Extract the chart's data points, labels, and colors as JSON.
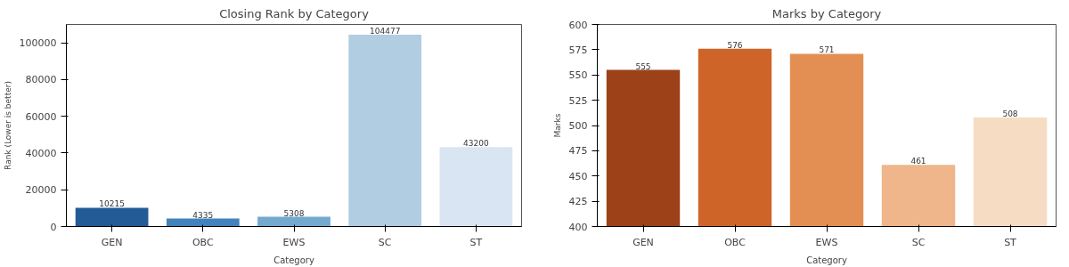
{
  "chart_data": [
    {
      "type": "bar",
      "title": "Closing Rank by Category",
      "xlabel": "Category",
      "ylabel": "Rank (Lower is better)",
      "categories": [
        "GEN",
        "OBC",
        "EWS",
        "SC",
        "ST"
      ],
      "values": [
        10215,
        4335,
        5308,
        104477,
        43200
      ],
      "colors": [
        "#225b95",
        "#4282bd",
        "#74a9cf",
        "#b0cde1",
        "#d9e5f2"
      ],
      "ylim": [
        0,
        110000
      ],
      "yticks": [
        0,
        20000,
        40000,
        60000,
        80000,
        100000
      ],
      "data_labels": true,
      "grid": false
    },
    {
      "type": "bar",
      "title": "Marks by Category",
      "xlabel": "Category",
      "ylabel": "Marks",
      "categories": [
        "GEN",
        "OBC",
        "EWS",
        "SC",
        "ST"
      ],
      "values": [
        555,
        576,
        571,
        461,
        508
      ],
      "colors": [
        "#9c4118",
        "#cf6429",
        "#e38f53",
        "#eeb68a",
        "#f6dcc3"
      ],
      "ylim": [
        400,
        600
      ],
      "yticks": [
        400,
        425,
        450,
        475,
        500,
        525,
        550,
        575,
        600
      ],
      "data_labels": true,
      "grid": false
    }
  ]
}
